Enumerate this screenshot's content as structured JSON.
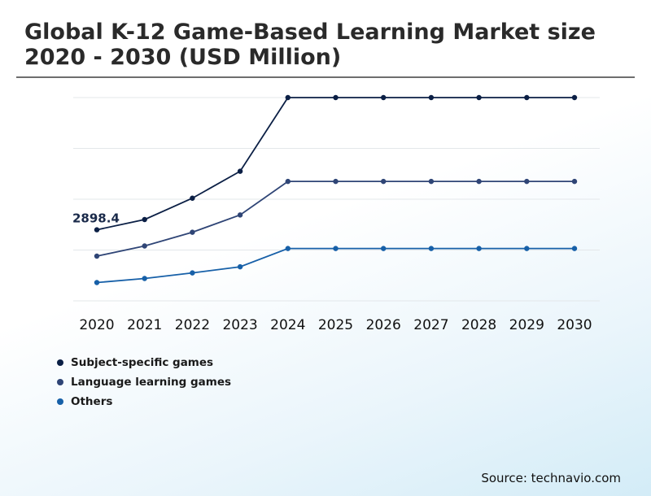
{
  "title": "Global K-12 Game-Based Learning Market size 2020 - 2030 (USD Million)",
  "source": "Source: technavio.com",
  "colors": {
    "series1": "#0b1f45",
    "series2": "#2f4576",
    "series3": "#1760a8",
    "gridline": "#e3e7ea"
  },
  "chart_data": {
    "type": "line",
    "title": "Global K-12 Game-Based Learning Market size 2020 - 2030 (USD Million)",
    "xlabel": "",
    "ylabel": "",
    "categories": [
      "2020",
      "2021",
      "2022",
      "2023",
      "2024",
      "2025",
      "2026",
      "2027",
      "2028",
      "2029",
      "2030"
    ],
    "ylim": [
      1500,
      5500
    ],
    "gridlines": [
      1500,
      2500,
      3500,
      4500,
      5500
    ],
    "legend_position": "bottom-left",
    "series": [
      {
        "name": "Subject-specific games",
        "color": "#0b1f45",
        "values": [
          2898.4,
          3100,
          3520,
          4050,
          5580,
          5580,
          5580,
          5580,
          5580,
          5580,
          5580
        ]
      },
      {
        "name": "Language learning games",
        "color": "#2f4576",
        "values": [
          2380,
          2580,
          2850,
          3190,
          3850,
          3850,
          3850,
          3850,
          3850,
          3850,
          3850
        ]
      },
      {
        "name": "Others",
        "color": "#1760a8",
        "values": [
          1860,
          1940,
          2050,
          2170,
          2530,
          2530,
          2530,
          2530,
          2530,
          2530,
          2530
        ]
      }
    ],
    "annotations": [
      {
        "text": "2898.4",
        "series": 0,
        "category": "2020"
      }
    ]
  }
}
